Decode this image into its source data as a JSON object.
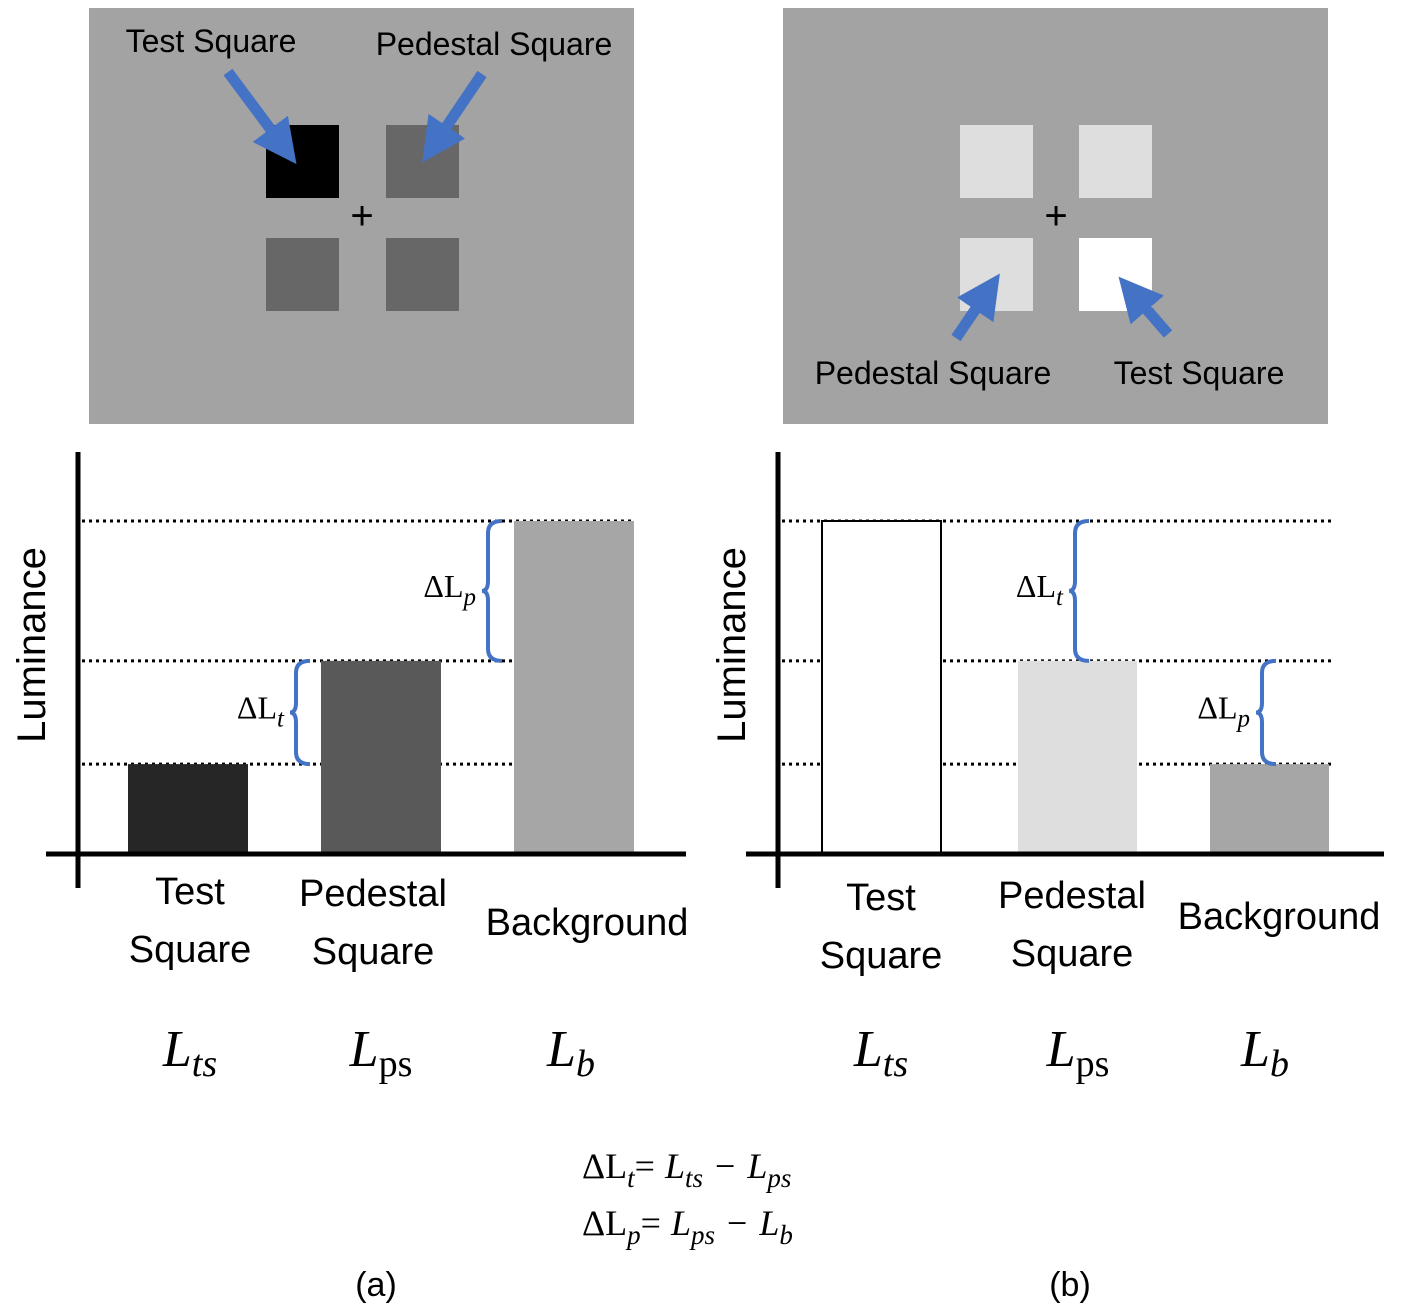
{
  "colors": {
    "stimulus_background": "#a3a3a3",
    "arrow": "#4472c4",
    "brace": "#4472c4",
    "panel_a_test_square": "#000000",
    "panel_a_pedestal_square": "#676767",
    "panel_b_test_square": "#ffffff",
    "panel_b_pedestal_square": "#dedede",
    "bar_a_test": "#262626",
    "bar_a_pedestal": "#595959",
    "bar_a_background": "#a6a6a6",
    "bar_b_test": "#ffffff",
    "bar_b_pedestal": "#dedede",
    "bar_b_background": "#a6a6a6"
  },
  "stimulus_a": {
    "test_label": "Test Square",
    "pedestal_label": "Pedestal Square",
    "fixation": "+"
  },
  "stimulus_b": {
    "test_label": "Test Square",
    "pedestal_label": "Pedestal Square",
    "fixation": "+"
  },
  "chart_data": [
    {
      "type": "bar",
      "panel": "(a)",
      "ylabel": "Luminance",
      "categories": [
        "Test Square",
        "Pedestal Square",
        "Background"
      ],
      "values": [
        0.27,
        0.58,
        1.0
      ],
      "cat_lines": [
        [
          "Test",
          "Square"
        ],
        [
          "Pedestal",
          "Square"
        ],
        [
          "Background"
        ]
      ],
      "symbols": [
        {
          "base": "L",
          "sub": "ts",
          "sub_upright": false
        },
        {
          "base": "L",
          "sub": "ps",
          "sub_upright": true
        },
        {
          "base": "L",
          "sub": "b",
          "sub_upright": false
        }
      ],
      "braces": [
        {
          "base": "ΔL",
          "sub": "t",
          "from_value": 0.27,
          "to_value": 0.58
        },
        {
          "base": "ΔL",
          "sub": "p",
          "from_value": 0.58,
          "to_value": 1.0
        }
      ]
    },
    {
      "type": "bar",
      "panel": "(b)",
      "ylabel": "Luminance",
      "categories": [
        "Test Square",
        "Pedestal Square",
        "Background"
      ],
      "values": [
        1.0,
        0.58,
        0.27
      ],
      "cat_lines": [
        [
          "Test",
          "Square"
        ],
        [
          "Pedestal",
          "Square"
        ],
        [
          "Background"
        ]
      ],
      "symbols": [
        {
          "base": "L",
          "sub": "ts",
          "sub_upright": false
        },
        {
          "base": "L",
          "sub": "ps",
          "sub_upright": true
        },
        {
          "base": "L",
          "sub": "b",
          "sub_upright": false
        }
      ],
      "braces": [
        {
          "base": "ΔL",
          "sub": "t",
          "from_value": 0.58,
          "to_value": 1.0
        },
        {
          "base": "ΔL",
          "sub": "p",
          "from_value": 0.27,
          "to_value": 0.58
        }
      ]
    }
  ],
  "equations": {
    "eq1": {
      "lhs": "ΔL",
      "lhs_sub": "t",
      "eq": "=",
      "a": "L",
      "a_sub": "ts",
      "op": "−",
      "b": "L",
      "b_sub": "ps"
    },
    "eq2": {
      "lhs": "ΔL",
      "lhs_sub": "p",
      "eq": "=",
      "a": "L",
      "a_sub": "ps",
      "op": "−",
      "b": "L",
      "b_sub": "b"
    }
  },
  "captions": {
    "a": "(a)",
    "b": "(b)"
  }
}
